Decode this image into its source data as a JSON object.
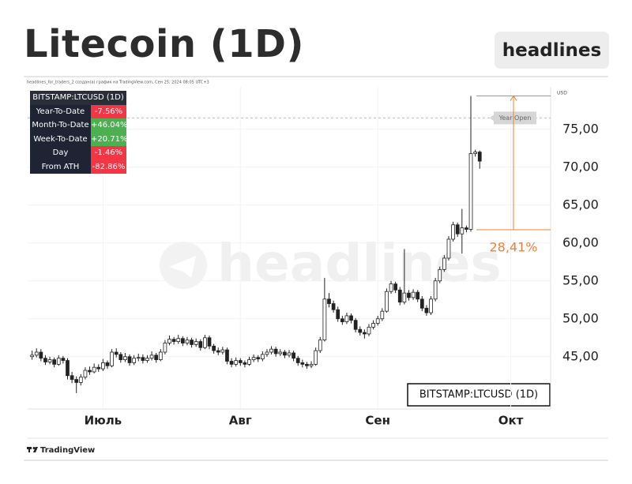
{
  "header": {
    "title": "Litecoin (1D)",
    "button": "headlines"
  },
  "caption": "headlines_for_traders_2 создан(а) график на TradingView.com, Сен 25, 2024 08:05 UTC+3",
  "footer": "TradingView",
  "table": {
    "title": "BITSTAMP:LTCUSD (1D)",
    "rows": [
      {
        "label": "Year-To-Date",
        "value": "-7.56%",
        "color": "#f23645"
      },
      {
        "label": "Month-To-Date",
        "value": "+46.04%",
        "color": "#4caf50"
      },
      {
        "label": "Week-To-Date",
        "value": "+20.71%",
        "color": "#4caf50"
      },
      {
        "label": "Day",
        "value": "-1.46%",
        "color": "#f23645"
      },
      {
        "label": "From ATH",
        "value": "-82.86%",
        "color": "#f23645"
      }
    ]
  },
  "chart_data": {
    "type": "candlestick",
    "y_unit": "USD",
    "watermark": "headlines",
    "symbol_label": "BITSTAMP:LTCUSD (1D)",
    "up_color": "#ffffff",
    "down_color": "#222222",
    "grid": true,
    "xlim": [
      -1,
      117
    ],
    "xticks": [
      {
        "value": 16,
        "label": "Июль"
      },
      {
        "value": 47,
        "label": "Авг"
      },
      {
        "value": 78,
        "label": "Сен"
      },
      {
        "value": 108,
        "label": "Окт"
      }
    ],
    "ylim": [
      38.1,
      80.6
    ],
    "yticks": [
      {
        "value": 45,
        "label": "45,00"
      },
      {
        "value": 50,
        "label": "50,00"
      },
      {
        "value": 55,
        "label": "55,00"
      },
      {
        "value": 60,
        "label": "60,00"
      },
      {
        "value": 65,
        "label": "65,00"
      },
      {
        "value": 70,
        "label": "70,00"
      },
      {
        "value": 75,
        "label": "75,00"
      }
    ],
    "year_open": {
      "value": 76.5,
      "label": "Year Open"
    },
    "measure": {
      "from": 61.75,
      "to": 79.4,
      "label": "28,41%",
      "color": "#f57c33"
    },
    "candles": [
      [
        45.0,
        45.8,
        44.6,
        45.2
      ],
      [
        45.2,
        46.1,
        44.9,
        45.6
      ],
      [
        45.6,
        46.0,
        44.4,
        44.8
      ],
      [
        44.8,
        45.2,
        43.9,
        44.3
      ],
      [
        44.3,
        45.0,
        44.0,
        44.6
      ],
      [
        44.6,
        44.9,
        43.6,
        44.0
      ],
      [
        44.0,
        45.2,
        43.8,
        44.8
      ],
      [
        44.8,
        45.1,
        44.1,
        44.5
      ],
      [
        44.5,
        44.8,
        42.0,
        42.5
      ],
      [
        42.5,
        43.0,
        41.5,
        42.0
      ],
      [
        42.0,
        42.4,
        40.2,
        41.6
      ],
      [
        41.6,
        42.7,
        41.2,
        42.3
      ],
      [
        42.3,
        43.6,
        42.0,
        43.2
      ],
      [
        43.2,
        43.7,
        42.6,
        43.0
      ],
      [
        43.0,
        44.1,
        42.8,
        43.6
      ],
      [
        43.6,
        44.0,
        43.0,
        43.4
      ],
      [
        43.4,
        44.7,
        43.1,
        44.2
      ],
      [
        44.2,
        44.5,
        43.4,
        43.8
      ],
      [
        43.8,
        46.0,
        43.6,
        45.6
      ],
      [
        45.6,
        46.1,
        44.9,
        45.3
      ],
      [
        45.3,
        45.6,
        44.2,
        44.6
      ],
      [
        44.6,
        45.5,
        44.3,
        45.0
      ],
      [
        45.0,
        45.3,
        43.8,
        44.2
      ],
      [
        44.2,
        45.2,
        43.9,
        44.8
      ],
      [
        44.8,
        45.4,
        44.4,
        44.9
      ],
      [
        44.9,
        45.3,
        44.1,
        44.5
      ],
      [
        44.5,
        45.2,
        44.2,
        44.8
      ],
      [
        44.8,
        45.7,
        44.5,
        45.2
      ],
      [
        45.2,
        45.5,
        44.2,
        44.6
      ],
      [
        44.6,
        46.0,
        44.4,
        45.6
      ],
      [
        45.6,
        47.2,
        45.3,
        46.8
      ],
      [
        46.8,
        47.8,
        46.5,
        47.3
      ],
      [
        47.3,
        47.6,
        46.6,
        47.0
      ],
      [
        47.0,
        47.9,
        46.7,
        47.4
      ],
      [
        47.4,
        47.7,
        46.4,
        46.8
      ],
      [
        46.8,
        47.6,
        46.5,
        47.2
      ],
      [
        47.2,
        47.5,
        46.2,
        46.6
      ],
      [
        46.6,
        47.4,
        46.3,
        47.0
      ],
      [
        47.0,
        47.3,
        45.8,
        46.2
      ],
      [
        46.2,
        47.9,
        46.0,
        47.5
      ],
      [
        47.5,
        47.8,
        46.0,
        46.4
      ],
      [
        46.4,
        46.7,
        45.4,
        45.8
      ],
      [
        45.8,
        46.2,
        45.2,
        45.6
      ],
      [
        45.6,
        46.3,
        45.3,
        45.9
      ],
      [
        45.9,
        46.2,
        44.0,
        44.4
      ],
      [
        44.4,
        44.8,
        43.6,
        44.0
      ],
      [
        44.0,
        44.9,
        43.7,
        44.5
      ],
      [
        44.5,
        44.8,
        43.8,
        44.2
      ],
      [
        44.2,
        44.5,
        43.6,
        44.0
      ],
      [
        44.0,
        45.0,
        43.8,
        44.6
      ],
      [
        44.6,
        45.3,
        44.3,
        44.9
      ],
      [
        44.9,
        45.2,
        44.3,
        44.7
      ],
      [
        44.7,
        45.7,
        44.4,
        45.3
      ],
      [
        45.3,
        46.0,
        45.0,
        45.6
      ],
      [
        45.6,
        46.4,
        45.3,
        46.0
      ],
      [
        46.0,
        46.3,
        45.0,
        45.4
      ],
      [
        45.4,
        46.0,
        45.1,
        45.6
      ],
      [
        45.6,
        45.9,
        44.8,
        45.2
      ],
      [
        45.2,
        45.9,
        44.9,
        45.5
      ],
      [
        45.5,
        45.8,
        44.4,
        44.8
      ],
      [
        44.8,
        45.1,
        43.8,
        44.2
      ],
      [
        44.2,
        44.6,
        43.6,
        44.0
      ],
      [
        44.0,
        44.3,
        43.4,
        43.8
      ],
      [
        43.8,
        44.4,
        43.5,
        44.0
      ],
      [
        44.0,
        46.2,
        43.8,
        45.8
      ],
      [
        45.8,
        47.6,
        45.5,
        47.2
      ],
      [
        47.2,
        55.4,
        47.0,
        52.6
      ],
      [
        52.6,
        53.4,
        51.5,
        52.0
      ],
      [
        52.0,
        52.4,
        50.8,
        51.2
      ],
      [
        51.2,
        51.6,
        49.6,
        50.0
      ],
      [
        50.0,
        50.4,
        49.2,
        49.6
      ],
      [
        49.6,
        50.8,
        49.3,
        50.4
      ],
      [
        50.4,
        50.7,
        49.4,
        49.8
      ],
      [
        49.8,
        50.1,
        48.2,
        48.6
      ],
      [
        48.6,
        49.0,
        47.8,
        48.2
      ],
      [
        48.2,
        48.6,
        47.4,
        48.0
      ],
      [
        48.0,
        49.3,
        47.7,
        48.9
      ],
      [
        48.9,
        49.8,
        48.6,
        49.4
      ],
      [
        49.4,
        50.4,
        49.1,
        50.0
      ],
      [
        50.0,
        51.4,
        49.7,
        51.0
      ],
      [
        51.0,
        54.0,
        50.8,
        53.6
      ],
      [
        53.6,
        55.0,
        53.3,
        54.6
      ],
      [
        54.6,
        54.9,
        53.4,
        53.8
      ],
      [
        53.8,
        54.2,
        51.8,
        52.2
      ],
      [
        52.2,
        59.2,
        51.9,
        53.4
      ],
      [
        53.4,
        53.8,
        52.4,
        52.8
      ],
      [
        52.8,
        53.9,
        52.5,
        53.5
      ],
      [
        53.5,
        53.8,
        52.2,
        52.6
      ],
      [
        52.6,
        53.0,
        51.0,
        51.4
      ],
      [
        51.4,
        51.8,
        50.4,
        50.8
      ],
      [
        50.8,
        53.0,
        50.5,
        52.6
      ],
      [
        52.6,
        55.4,
        52.3,
        55.0
      ],
      [
        55.0,
        56.9,
        54.7,
        56.5
      ],
      [
        56.5,
        58.4,
        56.2,
        58.0
      ],
      [
        58.0,
        60.9,
        57.7,
        60.5
      ],
      [
        60.5,
        62.8,
        60.2,
        62.4
      ],
      [
        62.4,
        62.7,
        60.8,
        61.2
      ],
      [
        61.2,
        64.5,
        58.6,
        62.0
      ],
      [
        62.0,
        62.3,
        61.4,
        61.8
      ],
      [
        61.8,
        79.4,
        61.5,
        71.8
      ],
      [
        71.8,
        72.3,
        71.4,
        72.0
      ],
      [
        72.0,
        72.2,
        69.8,
        70.8
      ]
    ]
  }
}
